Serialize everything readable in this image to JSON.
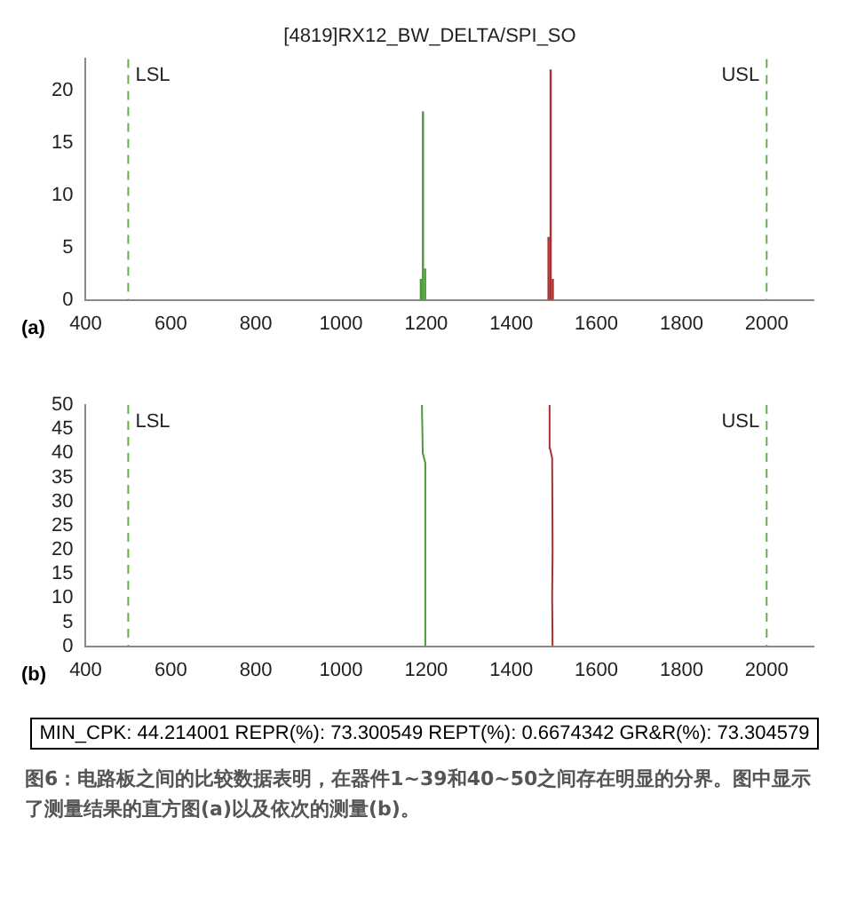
{
  "chart_data": [
    {
      "type": "histogram",
      "title": "[4819]RX12_BW_DELTA/SPI_SO",
      "bins": [
        1185,
        1190,
        1195,
        1200,
        1485,
        1490,
        1495,
        1500
      ],
      "values": [
        2,
        18,
        3,
        0,
        6,
        22,
        2
      ],
      "colors": [
        "#4a9a3a",
        "#4a9a3a",
        "#4a9a3a",
        "#ffffff",
        "#a83030",
        "#a83030",
        "#a83030"
      ],
      "xlim": [
        400,
        2110
      ],
      "xticks": [
        400,
        600,
        800,
        1000,
        1200,
        1400,
        1600,
        1800,
        2000
      ],
      "ylim": [
        0,
        23
      ],
      "yticks": [
        0,
        5,
        10,
        15,
        20
      ],
      "ref_lines": [
        {
          "axis": "x",
          "value": 500,
          "label": "LSL",
          "color": "#66b04a",
          "line_style": "dashed"
        },
        {
          "axis": "x",
          "value": 2000,
          "label": "USL",
          "color": "#66b04a",
          "line_style": "dashed"
        }
      ],
      "annotations": [
        "(a)"
      ]
    },
    {
      "type": "line",
      "series": [
        {
          "color": "#4a9a3a",
          "x": [
            1199,
            1197,
            1199,
            1198,
            1192,
            1190
          ],
          "values": [
            0,
            10,
            20,
            38,
            40,
            50
          ]
        },
        {
          "color": "#a83030",
          "x": [
            1497,
            1496,
            1497,
            1496,
            1491,
            1490
          ],
          "values": [
            0,
            10,
            20,
            39,
            41,
            50
          ]
        }
      ],
      "xlim": [
        400,
        2110
      ],
      "xticks": [
        400,
        600,
        800,
        1000,
        1200,
        1400,
        1600,
        1800,
        2000
      ],
      "ylim": [
        0,
        50
      ],
      "yticks": [
        0,
        5,
        10,
        15,
        20,
        25,
        30,
        35,
        40,
        45,
        50
      ],
      "ref_lines": [
        {
          "axis": "x",
          "value": 500,
          "label": "LSL",
          "color": "#66b04a",
          "line_style": "dashed"
        },
        {
          "axis": "x",
          "value": 2000,
          "label": "USL",
          "color": "#66b04a",
          "line_style": "dashed"
        }
      ],
      "annotations": [
        "(b)",
        "MIN_CPK: 44.214001  REPR(%): 73.300549  REPT(%): 0.6674342  GR&R(%): 73.304579",
        "图6：电路板之间的比较数据表明，在器件1~39和40~50之间存在明显的分界。图中显示了测量结果的直方图(a)以及依次的测量(b)。"
      ]
    }
  ]
}
